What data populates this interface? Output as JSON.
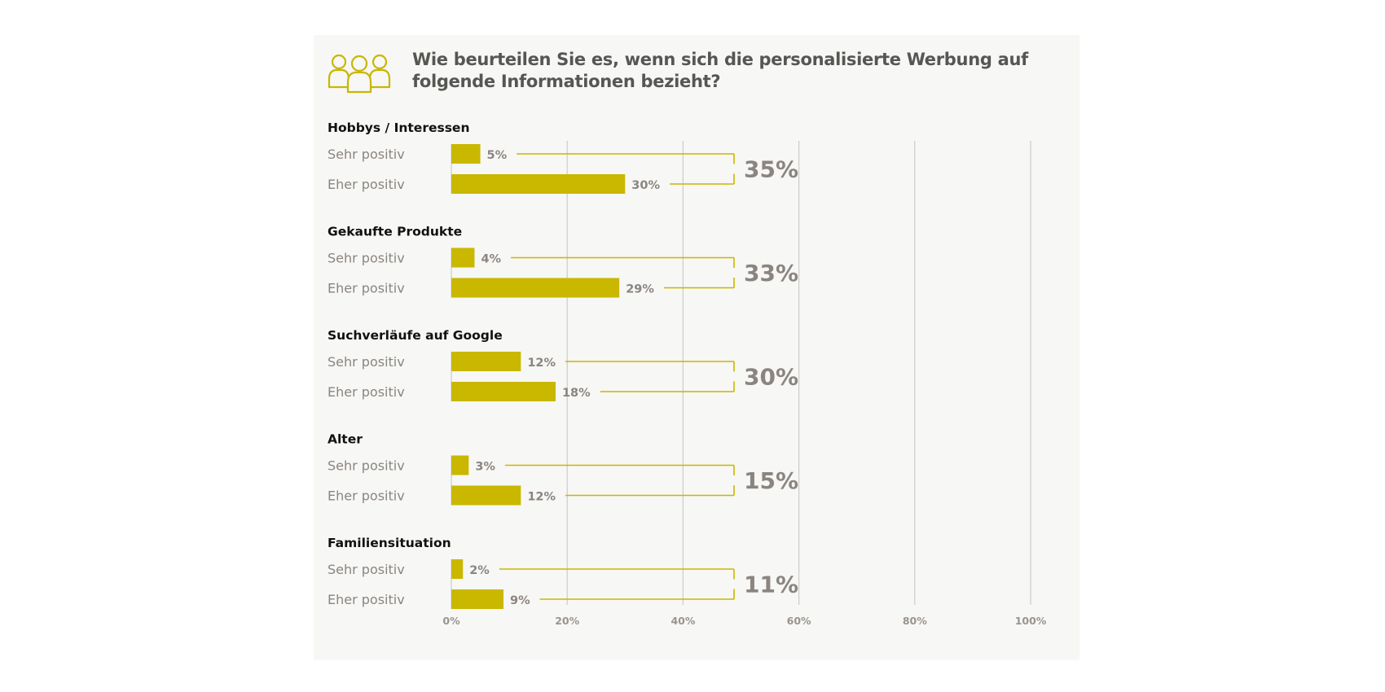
{
  "title": "Wie beurteilen Sie es, wenn sich die personalisierte Werbung auf folgende Informationen bezieht?",
  "icon": "people-group-icon",
  "colors": {
    "bar": "#c9b700",
    "text_muted": "#8a8580",
    "grid": "#cccccc",
    "background": "#f7f7f5"
  },
  "chart_data": {
    "type": "bar",
    "orientation": "horizontal",
    "xlim": [
      0,
      100
    ],
    "ticks": [
      "0%",
      "20%",
      "40%",
      "60%",
      "80%",
      "100%"
    ],
    "tick_values": [
      0,
      20,
      40,
      60,
      80,
      100
    ],
    "grid": true,
    "groups": [
      {
        "title": "Hobbys / Interessen",
        "rows": [
          {
            "label": "Sehr positiv",
            "value": 5,
            "value_label": "5%"
          },
          {
            "label": "Eher positiv",
            "value": 30,
            "value_label": "30%"
          }
        ],
        "total_label": "35%"
      },
      {
        "title": "Gekaufte Produkte",
        "rows": [
          {
            "label": "Sehr positiv",
            "value": 4,
            "value_label": "4%"
          },
          {
            "label": "Eher positiv",
            "value": 29,
            "value_label": "29%"
          }
        ],
        "total_label": "33%"
      },
      {
        "title": "Suchverläufe auf Google",
        "rows": [
          {
            "label": "Sehr positiv",
            "value": 12,
            "value_label": "12%"
          },
          {
            "label": "Eher positiv",
            "value": 18,
            "value_label": "18%"
          }
        ],
        "total_label": "30%"
      },
      {
        "title": "Alter",
        "rows": [
          {
            "label": "Sehr positiv",
            "value": 3,
            "value_label": "3%"
          },
          {
            "label": "Eher positiv",
            "value": 12,
            "value_label": "12%"
          }
        ],
        "total_label": "15%"
      },
      {
        "title": "Familiensituation",
        "rows": [
          {
            "label": "Sehr positiv",
            "value": 2,
            "value_label": "2%"
          },
          {
            "label": "Eher positiv",
            "value": 9,
            "value_label": "9%"
          }
        ],
        "total_label": "11%"
      }
    ]
  }
}
